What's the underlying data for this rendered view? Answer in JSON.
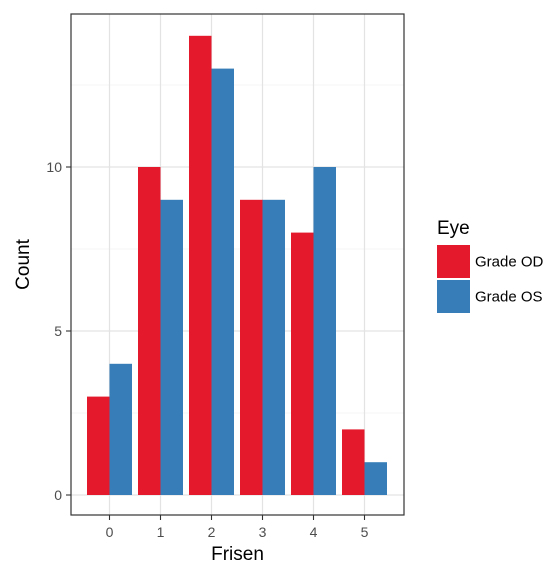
{
  "chart_data": {
    "type": "bar",
    "title": "",
    "xlabel": "Frisen",
    "ylabel": "Count",
    "categories": [
      "0",
      "1",
      "2",
      "3",
      "4",
      "5"
    ],
    "ylim": [
      0,
      14.5
    ],
    "yticks": [
      0,
      5,
      10
    ],
    "grid": true,
    "legend_position": "right",
    "legend_title": "Eye",
    "series": [
      {
        "name": "Grade OD",
        "color": "#e41a2c",
        "values": [
          3,
          10,
          14,
          9,
          8,
          2
        ]
      },
      {
        "name": "Grade OS",
        "color": "#377eb8",
        "values": [
          4,
          9,
          13,
          9,
          10,
          1
        ]
      }
    ]
  }
}
